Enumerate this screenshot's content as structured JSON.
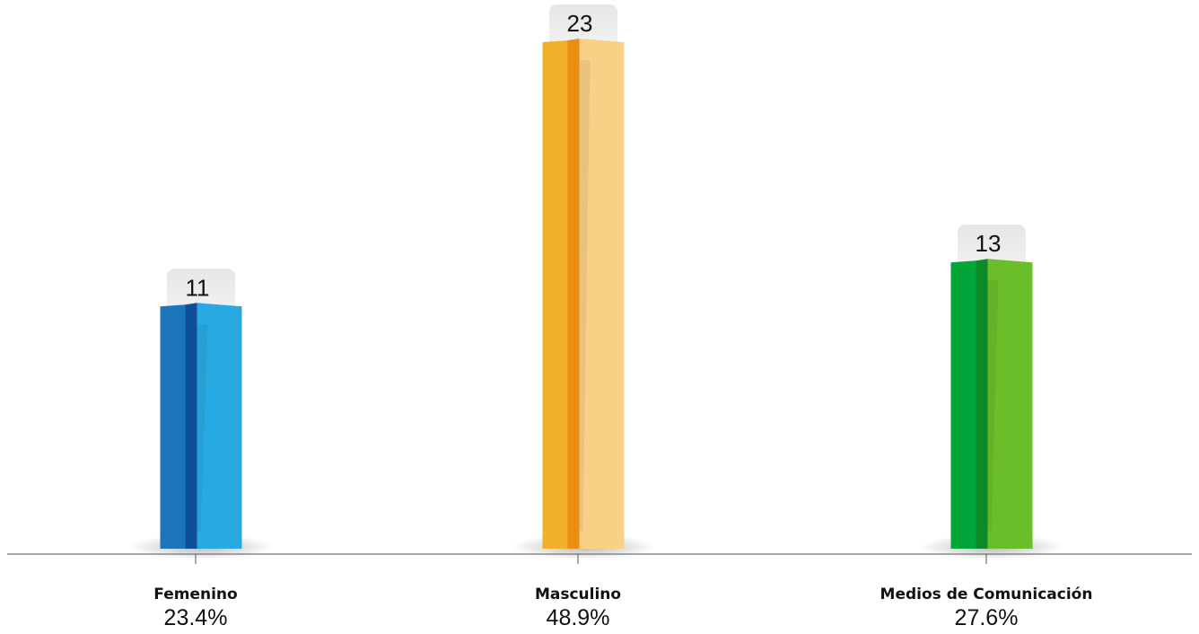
{
  "chart_data": {
    "type": "bar",
    "categories": [
      "Femenino",
      "Masculino",
      "Medios de Comunicación"
    ],
    "values": [
      11,
      23,
      13
    ],
    "percentages": [
      "23.4%",
      "48.9%",
      "27.6%"
    ],
    "title": "",
    "xlabel": "",
    "ylabel": "",
    "ylim": [
      0,
      23
    ],
    "grid": false,
    "legend": "none",
    "colors": [
      {
        "front": "#1b75bb",
        "edge": "#0f4f97",
        "side": "#29a9e1"
      },
      {
        "front": "#f0b02a",
        "edge": "#e98e12",
        "side": "#f8d086"
      },
      {
        "front": "#00a738",
        "edge": "#0c8a2a",
        "side": "#6abe2a"
      }
    ]
  }
}
